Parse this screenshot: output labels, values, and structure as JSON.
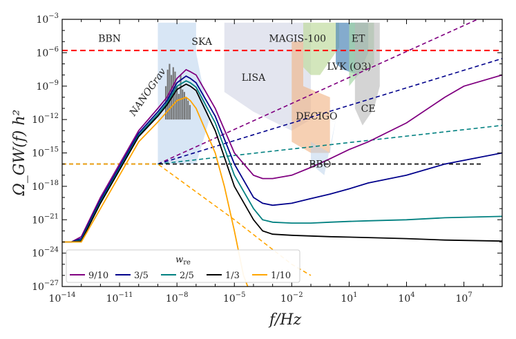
{
  "chart_data": {
    "type": "line",
    "xscale": "log",
    "yscale": "log",
    "xlim": [
      1e-14,
      1000000000.0
    ],
    "ylim": [
      1e-27,
      0.001
    ],
    "xlabel": "f/Hz",
    "ylabel": "Ω_GW(f) h²",
    "x_ticks": [
      {
        "value": 1e-14,
        "label": "10^-14"
      },
      {
        "value": 1e-11,
        "label": "10^-11"
      },
      {
        "value": 1e-08,
        "label": "10^-8"
      },
      {
        "value": 1e-05,
        "label": "10^-5"
      },
      {
        "value": 0.01,
        "label": "10^-2"
      },
      {
        "value": 10,
        "label": "10^1"
      },
      {
        "value": 10000.0,
        "label": "10^4"
      },
      {
        "value": 10000000.0,
        "label": "10^7"
      }
    ],
    "y_ticks": [
      {
        "value": 0.001,
        "label": "10^-3"
      },
      {
        "value": 1e-06,
        "label": "10^-6"
      },
      {
        "value": 1e-09,
        "label": "10^-9"
      },
      {
        "value": 1e-12,
        "label": "10^-12"
      },
      {
        "value": 1e-15,
        "label": "10^-15"
      },
      {
        "value": 1e-18,
        "label": "10^-18"
      },
      {
        "value": 1e-21,
        "label": "10^-21"
      },
      {
        "value": 1e-24,
        "label": "10^-24"
      },
      {
        "value": 1e-27,
        "label": "10^-27"
      }
    ],
    "bbn_bound": {
      "label": "BBN",
      "y": 1.6e-06,
      "color": "#ff0000"
    },
    "regions": [
      {
        "name": "SKA",
        "color": "#a8c8e8",
        "opacity": 0.45,
        "label_at": [
          2e-07,
          5e-06
        ],
        "points": [
          [
            1e-09,
            0.0005
          ],
          [
            1e-07,
            0.0005
          ],
          [
            1e-07,
            1e-06
          ],
          [
            5e-07,
            1e-12
          ],
          [
            1e-07,
            1e-16
          ],
          [
            1e-09,
            1e-16
          ]
        ]
      },
      {
        "name": "NANOGrav",
        "color": "#6b6b6b",
        "opacity": 0.9,
        "label_at": [
          4e-10,
          2e-10
        ],
        "label_rotation": -55
      },
      {
        "name": "LISA",
        "color": "#c8cce0",
        "opacity": 0.5,
        "label_at": [
          0.0001,
          3e-09
        ],
        "points": [
          [
            3e-06,
            0.0005
          ],
          [
            0.1,
            0.0005
          ],
          [
            0.1,
            1e-12
          ],
          [
            0.01,
            1e-13
          ],
          [
            0.0001,
            5e-12
          ],
          [
            3e-06,
            3e-10
          ]
        ]
      },
      {
        "name": "DECIGO",
        "color": "#f0b080",
        "opacity": 0.6,
        "label_at": [
          0.2,
          1e-12
        ],
        "points": [
          [
            0.01,
            1e-05
          ],
          [
            0.04,
            1e-05
          ],
          [
            0.04,
            1e-09
          ],
          [
            1,
            1e-10
          ],
          [
            1,
            1e-15
          ],
          [
            0.1,
            1e-15
          ],
          [
            0.01,
            1e-14
          ]
        ]
      },
      {
        "name": "BBO",
        "color": "#b8d0ea",
        "opacity": 0.5,
        "label_at": [
          0.3,
          5e-17
        ],
        "points": [
          [
            0.1,
            1e-14
          ],
          [
            1,
            1e-15
          ],
          [
            2,
            1e-12
          ],
          [
            0.5,
            1e-17
          ],
          [
            0.1,
            1e-16
          ]
        ]
      },
      {
        "name": "MAGIS-100",
        "color": "#c0dca0",
        "opacity": 0.7,
        "label_at": [
          0.02,
          1e-05
        ],
        "points": [
          [
            0.04,
            0.0005
          ],
          [
            3,
            0.0005
          ],
          [
            3,
            3e-06
          ],
          [
            0.3,
            1e-08
          ],
          [
            0.1,
            1e-08
          ],
          [
            0.04,
            5e-08
          ]
        ]
      },
      {
        "name": "ET",
        "color": "#5088b8",
        "opacity": 0.7,
        "label_at": [
          30,
          1e-05
        ],
        "points": [
          [
            2,
            0.0005
          ],
          [
            100,
            0.0005
          ],
          [
            100,
            1e-06
          ],
          [
            30,
            1e-08
          ],
          [
            5,
            3e-08
          ],
          [
            2,
            1e-07
          ]
        ]
      },
      {
        "name": "LVK (O3)",
        "color": "#a8d8a8",
        "opacity": 0.7,
        "label_at": [
          10,
          3e-08
        ],
        "points": [
          [
            10,
            0.0005
          ],
          [
            200,
            0.0005
          ],
          [
            200,
            1e-07
          ],
          [
            30,
            1e-08
          ],
          [
            10,
            1e-09
          ]
        ]
      },
      {
        "name": "CE",
        "color": "#b8b8b8",
        "opacity": 0.6,
        "label_at": [
          100,
          5e-12
        ],
        "points": [
          [
            20,
            0.0005
          ],
          [
            400,
            0.0005
          ],
          [
            400,
            1e-09
          ],
          [
            200,
            1e-11
          ],
          [
            50,
            3e-13
          ],
          [
            20,
            1e-11
          ]
        ]
      }
    ],
    "series": [
      {
        "name": "9/10",
        "color": "#800080",
        "style": "solid",
        "points": [
          [
            1e-14,
            1e-23
          ],
          [
            3e-14,
            1e-23
          ],
          [
            1e-13,
            3e-23
          ],
          [
            1e-12,
            1e-19
          ],
          [
            1e-11,
            1e-16
          ],
          [
            1e-10,
            1e-13
          ],
          [
            1e-09,
            1e-11
          ],
          [
            3e-09,
            1e-10
          ],
          [
            1e-08,
            5e-09
          ],
          [
            3e-08,
            3e-08
          ],
          [
            5e-08,
            2e-08
          ],
          [
            1e-07,
            1e-08
          ],
          [
            1e-06,
            1e-11
          ],
          [
            1e-05,
            1e-15
          ],
          [
            0.0001,
            1e-17
          ],
          [
            0.0003,
            5e-18
          ],
          [
            0.001,
            5e-18
          ],
          [
            0.01,
            1e-17
          ],
          [
            0.1,
            5e-17
          ],
          [
            1,
            3e-16
          ],
          [
            10,
            2e-15
          ],
          [
            100,
            1e-14
          ],
          [
            10000.0,
            5e-13
          ],
          [
            1000000.0,
            1e-10
          ],
          [
            10000000.0,
            1e-09
          ],
          [
            1000000000.0,
            1e-08
          ]
        ]
      },
      {
        "name": "3/5",
        "color": "#00008b",
        "style": "solid",
        "points": [
          [
            1e-14,
            1e-23
          ],
          [
            3e-14,
            1e-23
          ],
          [
            1e-13,
            2e-23
          ],
          [
            1e-12,
            6e-20
          ],
          [
            1e-11,
            6e-17
          ],
          [
            1e-10,
            6e-14
          ],
          [
            1e-09,
            5e-12
          ],
          [
            3e-09,
            5e-11
          ],
          [
            1e-08,
            2e-09
          ],
          [
            3e-08,
            8e-09
          ],
          [
            5e-08,
            5e-09
          ],
          [
            1e-07,
            2e-09
          ],
          [
            1e-06,
            2e-12
          ],
          [
            1e-05,
            1e-16
          ],
          [
            0.0001,
            1e-19
          ],
          [
            0.0003,
            3e-20
          ],
          [
            0.001,
            2e-20
          ],
          [
            0.01,
            3e-20
          ],
          [
            0.1,
            8e-20
          ],
          [
            1,
            2e-19
          ],
          [
            10,
            6e-19
          ],
          [
            100,
            2e-18
          ],
          [
            10000.0,
            1e-17
          ],
          [
            1000000.0,
            1e-16
          ],
          [
            1000000000.0,
            1e-15
          ]
        ]
      },
      {
        "name": "2/5",
        "color": "#008080",
        "style": "solid",
        "points": [
          [
            1e-14,
            1e-23
          ],
          [
            3e-14,
            1e-23
          ],
          [
            1e-13,
            1.5e-23
          ],
          [
            1e-12,
            4e-20
          ],
          [
            1e-11,
            4e-17
          ],
          [
            1e-10,
            4e-14
          ],
          [
            1e-09,
            3e-12
          ],
          [
            3e-09,
            3e-11
          ],
          [
            1e-08,
            1e-09
          ],
          [
            3e-08,
            3e-09
          ],
          [
            5e-08,
            2e-09
          ],
          [
            1e-07,
            8e-10
          ],
          [
            1e-06,
            5e-13
          ],
          [
            1e-05,
            1e-17
          ],
          [
            0.0001,
            1e-20
          ],
          [
            0.0003,
            1e-21
          ],
          [
            0.001,
            6e-22
          ],
          [
            0.01,
            5e-22
          ],
          [
            0.1,
            5e-22
          ],
          [
            1,
            6e-22
          ],
          [
            10,
            7e-22
          ],
          [
            100,
            8e-22
          ],
          [
            10000.0,
            1e-21
          ],
          [
            1000000.0,
            1.5e-21
          ],
          [
            1000000000.0,
            2e-21
          ]
        ]
      },
      {
        "name": "1/3",
        "color": "#000000",
        "style": "solid",
        "points": [
          [
            1e-14,
            1e-23
          ],
          [
            3e-14,
            1e-23
          ],
          [
            1e-13,
            1.2e-23
          ],
          [
            1e-12,
            3e-20
          ],
          [
            1e-11,
            3e-17
          ],
          [
            1e-10,
            3e-14
          ],
          [
            1e-09,
            2e-12
          ],
          [
            3e-09,
            2e-11
          ],
          [
            1e-08,
            5e-10
          ],
          [
            3e-08,
            1.5e-09
          ],
          [
            5e-08,
            1e-09
          ],
          [
            1e-07,
            4e-10
          ],
          [
            1e-06,
            1e-13
          ],
          [
            1e-05,
            1e-18
          ],
          [
            0.0001,
            1e-21
          ],
          [
            0.0003,
            1e-22
          ],
          [
            0.001,
            5e-23
          ],
          [
            0.01,
            4e-23
          ],
          [
            1,
            3e-23
          ],
          [
            100,
            2.5e-23
          ],
          [
            10000.0,
            2e-23
          ],
          [
            1000000.0,
            1.5e-23
          ],
          [
            1000000000.0,
            1.2e-23
          ]
        ]
      },
      {
        "name": "1/10",
        "color": "#ffa500",
        "style": "solid",
        "points": [
          [
            1e-14,
            1e-23
          ],
          [
            3e-14,
            1e-23
          ],
          [
            1e-13,
            1e-23
          ],
          [
            1e-12,
            1e-20
          ],
          [
            1e-11,
            1e-17
          ],
          [
            1e-10,
            1e-14
          ],
          [
            1e-09,
            6e-13
          ],
          [
            3e-09,
            5e-12
          ],
          [
            1e-08,
            5e-11
          ],
          [
            3e-08,
            1e-10
          ],
          [
            5e-08,
            5e-11
          ],
          [
            1e-07,
            1e-11
          ],
          [
            1e-06,
            1e-15
          ],
          [
            3e-06,
            1e-18
          ],
          [
            1e-05,
            1e-22
          ],
          [
            3e-05,
            1e-26
          ],
          [
            5e-05,
            1e-27
          ]
        ]
      }
    ],
    "dashed_lines": [
      {
        "color": "#800080",
        "points": [
          [
            1e-09,
            1e-16
          ],
          [
            1000000000.0,
            0.01
          ]
        ]
      },
      {
        "color": "#00008b",
        "points": [
          [
            1e-09,
            1e-16
          ],
          [
            1000000000.0,
            3e-07
          ]
        ]
      },
      {
        "color": "#008080",
        "points": [
          [
            1e-09,
            1e-16
          ],
          [
            1000000000.0,
            3e-13
          ]
        ]
      },
      {
        "color": "#000000",
        "points": [
          [
            1e-14,
            1e-16
          ],
          [
            100000000.0,
            1e-16
          ]
        ]
      },
      {
        "color": "#ffa500",
        "points": [
          [
            1e-14,
            1e-16
          ],
          [
            1e-09,
            1e-16
          ],
          [
            1e-05,
            1e-21
          ],
          [
            0.01,
            1e-25
          ],
          [
            0.1,
            1e-26
          ]
        ]
      }
    ],
    "legend": {
      "title": "w_re",
      "placement": "bottom-left",
      "entries": [
        {
          "label": "9/10",
          "color": "#800080"
        },
        {
          "label": "3/5",
          "color": "#00008b"
        },
        {
          "label": "2/5",
          "color": "#008080"
        },
        {
          "label": "1/3",
          "color": "#000000"
        },
        {
          "label": "1/10",
          "color": "#ffa500"
        }
      ]
    }
  }
}
